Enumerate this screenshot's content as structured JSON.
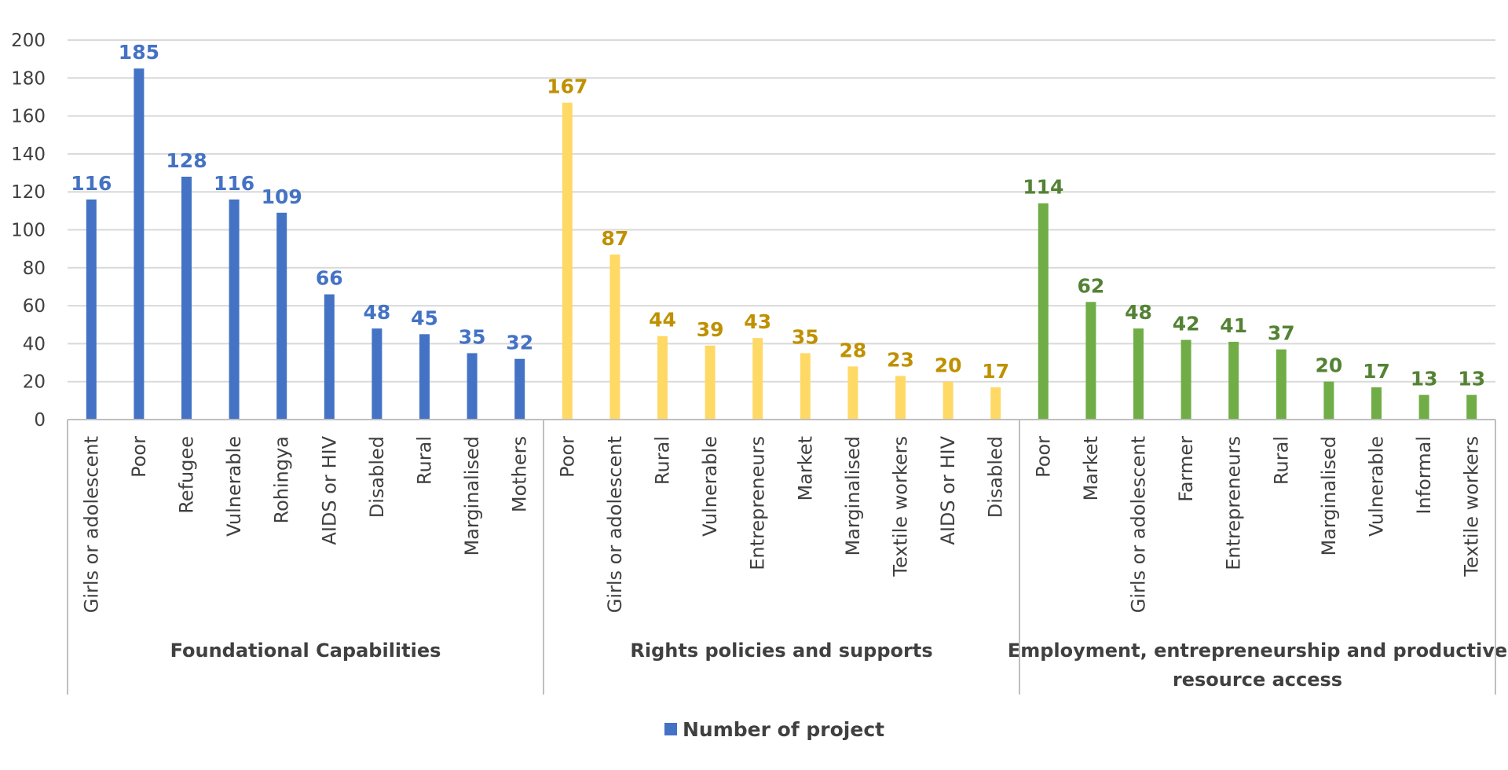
{
  "chart_data": {
    "type": "bar",
    "ylim": [
      0,
      200
    ],
    "ytick_step": 20,
    "grid": true,
    "legend": {
      "position": "bottom",
      "label": "Number of project",
      "color": "#4472C4"
    },
    "groups": [
      {
        "name": "Foundational Capabilities",
        "label_lines": [
          "Foundational Capabilities"
        ],
        "color": "#4472C4",
        "label_color": "#4472C4",
        "categories": [
          "Girls or adolescent",
          "Poor",
          "Refugee",
          "Vulnerable",
          "Rohingya",
          "AIDS or HIV",
          "Disabled",
          "Rural",
          "Marginalised",
          "Mothers"
        ],
        "values": [
          116,
          185,
          128,
          116,
          109,
          66,
          48,
          45,
          35,
          32
        ]
      },
      {
        "name": "Rights policies and supports",
        "label_lines": [
          "Rights policies and supports"
        ],
        "color": "#FFD966",
        "label_color": "#BF9000",
        "categories": [
          "Poor",
          "Girls or adolescent",
          "Rural",
          "Vulnerable",
          "Entrepreneurs",
          "Market",
          "Marginalised",
          "Textile workers",
          "AIDS or HIV",
          "Disabled"
        ],
        "values": [
          167,
          87,
          44,
          39,
          43,
          35,
          28,
          23,
          20,
          17
        ]
      },
      {
        "name": "Employment, entrepreneurship and productive resource access",
        "label_lines": [
          "Employment, entrepreneurship and productive",
          "resource access"
        ],
        "color": "#70AD47",
        "label_color": "#548235",
        "categories": [
          "Poor",
          "Market",
          "Girls or adolescent",
          "Farmer",
          "Entrepreneurs",
          "Rural",
          "Marginalised",
          "Vulnerable",
          "Informal",
          "Textile workers"
        ],
        "values": [
          114,
          62,
          48,
          42,
          41,
          37,
          20,
          17,
          13,
          13
        ]
      }
    ]
  }
}
